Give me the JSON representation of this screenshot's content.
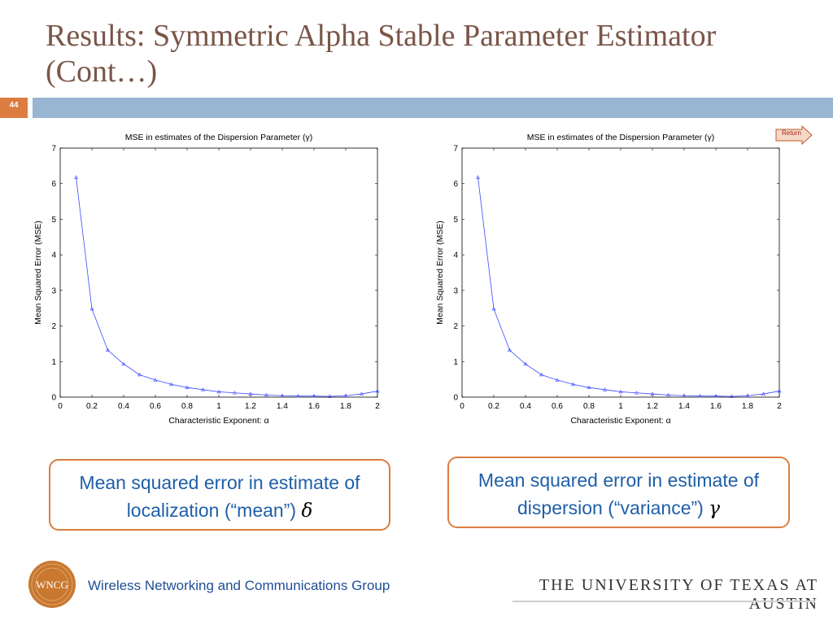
{
  "slide": {
    "title": "Results: Symmetric Alpha Stable Parameter Estimator (Cont…)",
    "number": "44",
    "return_label": "Return"
  },
  "chart_data": [
    {
      "type": "line",
      "title": "MSE in estimates of the Dispersion Parameter (γ)",
      "xlabel": "Characteristic Exponent: α",
      "ylabel": "Mean Squared Error (MSE)",
      "xlim": [
        0,
        2
      ],
      "ylim": [
        0,
        7
      ],
      "xticks": [
        "0",
        "0.2",
        "0.4",
        "0.6",
        "0.8",
        "1",
        "1.2",
        "1.4",
        "1.6",
        "1.8",
        "2"
      ],
      "yticks": [
        "0",
        "1",
        "2",
        "3",
        "4",
        "5",
        "6",
        "7"
      ],
      "series": [
        {
          "color": "#3c4bff",
          "x": [
            0.1,
            0.2,
            0.3,
            0.4,
            0.5,
            0.6,
            0.7,
            0.8,
            0.9,
            1.0,
            1.1,
            1.2,
            1.3,
            1.4,
            1.5,
            1.6,
            1.7,
            1.8,
            1.9,
            2.0
          ],
          "y": [
            6.18,
            2.48,
            1.32,
            0.93,
            0.63,
            0.48,
            0.36,
            0.27,
            0.21,
            0.15,
            0.12,
            0.09,
            0.06,
            0.04,
            0.03,
            0.03,
            0.02,
            0.04,
            0.09,
            0.17
          ]
        }
      ]
    },
    {
      "type": "line",
      "title": "MSE in estimates of the Dispersion Parameter (γ)",
      "xlabel": "Characteristic Exponent: α",
      "ylabel": "Mean Squared Error (MSE)",
      "xlim": [
        0,
        2
      ],
      "ylim": [
        0,
        7
      ],
      "xticks": [
        "0",
        "0.2",
        "0.4",
        "0.6",
        "0.8",
        "1",
        "1.2",
        "1.4",
        "1.6",
        "1.8",
        "2"
      ],
      "yticks": [
        "0",
        "1",
        "2",
        "3",
        "4",
        "5",
        "6",
        "7"
      ],
      "series": [
        {
          "color": "#3c4bff",
          "x": [
            0.1,
            0.2,
            0.3,
            0.4,
            0.5,
            0.6,
            0.7,
            0.8,
            0.9,
            1.0,
            1.1,
            1.2,
            1.3,
            1.4,
            1.5,
            1.6,
            1.7,
            1.8,
            1.9,
            2.0
          ],
          "y": [
            6.18,
            2.48,
            1.32,
            0.93,
            0.63,
            0.48,
            0.36,
            0.27,
            0.21,
            0.15,
            0.12,
            0.09,
            0.06,
            0.04,
            0.03,
            0.03,
            0.02,
            0.04,
            0.09,
            0.17
          ]
        }
      ]
    }
  ],
  "captions": [
    {
      "text": "Mean squared error in estimate of localization (“mean”)",
      "symbol": "δ"
    },
    {
      "text": "Mean squared error in estimate of dispersion (“variance”)",
      "symbol": "γ"
    }
  ],
  "footer": {
    "logo_text": "WNCG",
    "group_name": "Wireless Networking and Communications Group",
    "university": "THE UNIVERSITY OF TEXAS AT AUSTIN"
  },
  "colors": {
    "title": "#7a5548",
    "accent_orange": "#dc7d3f",
    "accent_blue": "#98b5d1",
    "caption_text": "#1f5fa8",
    "series": "#3c4bff"
  }
}
